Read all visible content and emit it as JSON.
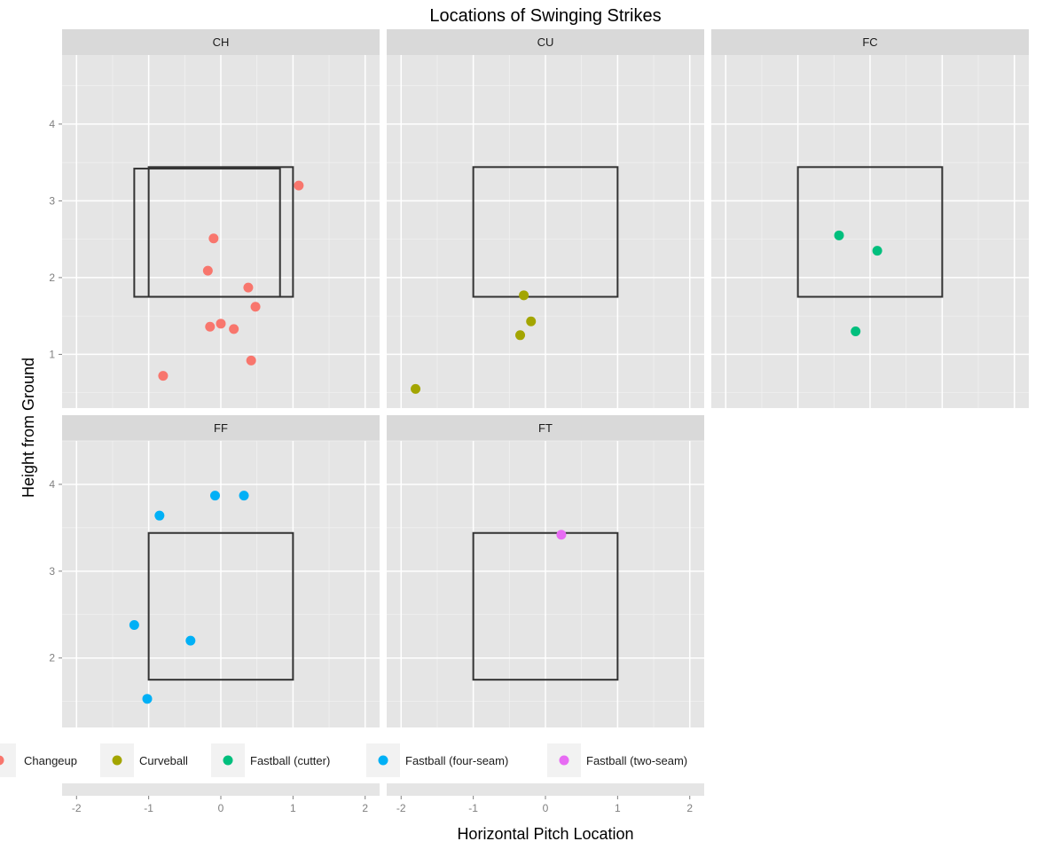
{
  "chart_data": {
    "type": "scatter",
    "title": "Locations of Swinging Strikes",
    "xlabel": "Horizontal Pitch Location",
    "ylabel": "Height from Ground",
    "xlim": [
      -2.2,
      2.2
    ],
    "x_ticks": [
      -2,
      -1,
      0,
      1,
      2
    ],
    "grid": true,
    "legend_position": "bottom",
    "panels": [
      {
        "label": "CH",
        "ylim": [
          0.3,
          4.9
        ],
        "y_ticks": [
          1,
          2,
          3,
          4
        ],
        "zones": [
          {
            "x0": -1.0,
            "x1": 1.0,
            "y0": 1.75,
            "y1": 3.44
          },
          {
            "x0": -1.2,
            "x1": 0.82,
            "y0": 1.75,
            "y1": 3.42
          }
        ],
        "series": "Changeup",
        "points": [
          {
            "x": 1.08,
            "y": 3.2
          },
          {
            "x": -0.1,
            "y": 2.51
          },
          {
            "x": -0.18,
            "y": 2.09
          },
          {
            "x": 0.38,
            "y": 1.87
          },
          {
            "x": 0.48,
            "y": 1.62
          },
          {
            "x": 0.0,
            "y": 1.4
          },
          {
            "x": -0.15,
            "y": 1.36
          },
          {
            "x": 0.18,
            "y": 1.33
          },
          {
            "x": 0.42,
            "y": 0.92
          },
          {
            "x": -0.8,
            "y": 0.72
          }
        ]
      },
      {
        "label": "CU",
        "ylim": [
          0.3,
          4.9
        ],
        "y_ticks": [
          1,
          2,
          3,
          4
        ],
        "zones": [
          {
            "x0": -1.0,
            "x1": 1.0,
            "y0": 1.75,
            "y1": 3.44
          }
        ],
        "series": "Curveball",
        "points": [
          {
            "x": -0.3,
            "y": 1.77
          },
          {
            "x": -0.2,
            "y": 1.43
          },
          {
            "x": -0.35,
            "y": 1.25
          },
          {
            "x": -1.8,
            "y": 0.55
          }
        ]
      },
      {
        "label": "FC",
        "ylim": [
          0.3,
          4.9
        ],
        "y_ticks": [
          1,
          2,
          3,
          4
        ],
        "zones": [
          {
            "x0": -1.0,
            "x1": 1.0,
            "y0": 1.75,
            "y1": 3.44
          }
        ],
        "series": "Fastball (cutter)",
        "points": [
          {
            "x": -0.43,
            "y": 2.55
          },
          {
            "x": 0.1,
            "y": 2.35
          },
          {
            "x": -0.2,
            "y": 1.3
          }
        ]
      },
      {
        "label": "FF",
        "ylim": [
          1.2,
          4.5
        ],
        "y_ticks": [
          2,
          3,
          4
        ],
        "zones": [
          {
            "x0": -1.0,
            "x1": 1.0,
            "y0": 1.75,
            "y1": 3.44
          }
        ],
        "series": "Fastball (four-seam)",
        "points": [
          {
            "x": -0.08,
            "y": 3.87
          },
          {
            "x": 0.32,
            "y": 3.87
          },
          {
            "x": -0.85,
            "y": 3.64
          },
          {
            "x": -1.2,
            "y": 2.38
          },
          {
            "x": -0.42,
            "y": 2.2
          },
          {
            "x": -1.02,
            "y": 1.53
          }
        ]
      },
      {
        "label": "FT",
        "ylim": [
          1.2,
          4.5
        ],
        "y_ticks": [
          2,
          3,
          4
        ],
        "zones": [
          {
            "x0": -1.0,
            "x1": 1.0,
            "y0": 1.75,
            "y1": 3.44
          }
        ],
        "series": "Fastball (two-seam)",
        "points": [
          {
            "x": 0.22,
            "y": 3.42
          }
        ]
      }
    ],
    "legend": [
      {
        "name": "Changeup",
        "color": "#F8766D"
      },
      {
        "name": "Curveball",
        "color": "#A3A500"
      },
      {
        "name": "Fastball (cutter)",
        "color": "#00BF7D"
      },
      {
        "name": "Fastball (four-seam)",
        "color": "#00B0F6"
      },
      {
        "name": "Fastball (two-seam)",
        "color": "#E76BF3"
      }
    ]
  }
}
